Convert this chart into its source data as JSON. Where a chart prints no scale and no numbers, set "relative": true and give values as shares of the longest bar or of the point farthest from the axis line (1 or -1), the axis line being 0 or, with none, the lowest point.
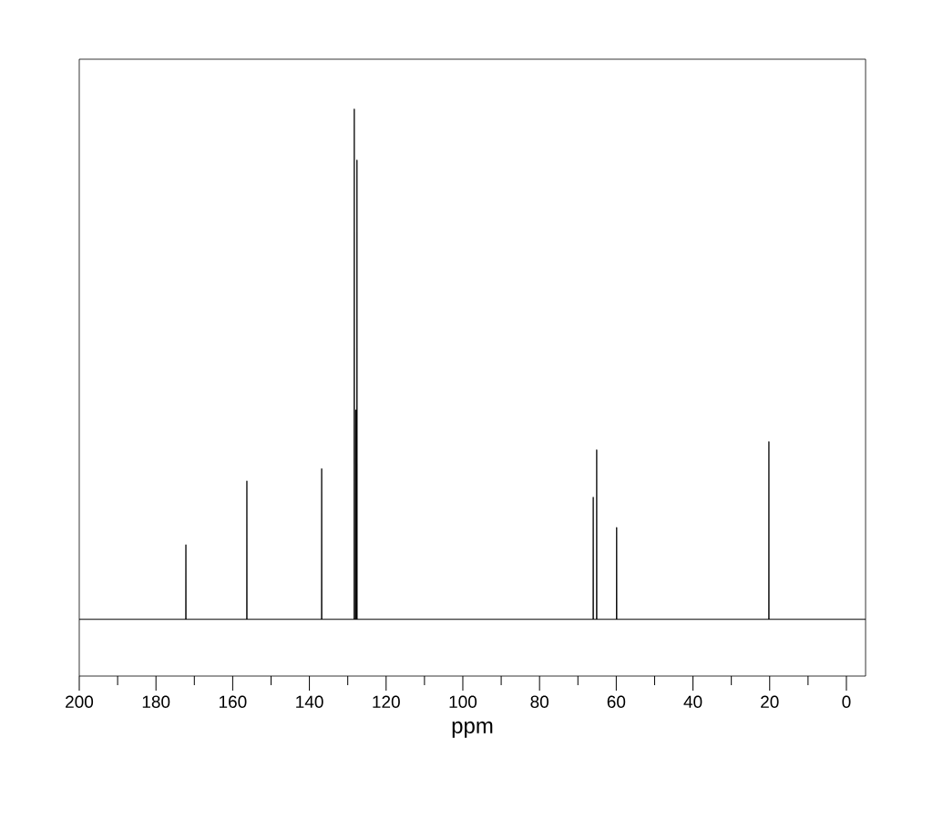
{
  "chart_data": {
    "type": "line",
    "relative": true,
    "xlabel": "ppm",
    "color": "#000000",
    "x": [
      200,
      172.22,
      172.2,
      172.18,
      156.32,
      156.3,
      156.28,
      136.82,
      136.8,
      136.78,
      128.32,
      128.3,
      128.28,
      127.92,
      127.9,
      127.88,
      127.62,
      127.6,
      127.58,
      66.02,
      66.0,
      65.98,
      65.12,
      65.1,
      65.08,
      59.92,
      59.9,
      59.88,
      20.22,
      20.2,
      20.18,
      -5
    ],
    "values": [
      0,
      0,
      0.146,
      0,
      0,
      0.271,
      0,
      0,
      0.295,
      0,
      0,
      1.0,
      0,
      0,
      0.41,
      0,
      0,
      0.9,
      0,
      0,
      0.239,
      0,
      0,
      0.332,
      0,
      0,
      0.18,
      0,
      0,
      0.348,
      0,
      0
    ],
    "xlim": [
      200,
      -5
    ],
    "xticks": [
      200,
      180,
      160,
      140,
      120,
      100,
      80,
      60,
      40,
      20,
      0
    ],
    "marker": "none",
    "line_style": "solid"
  }
}
